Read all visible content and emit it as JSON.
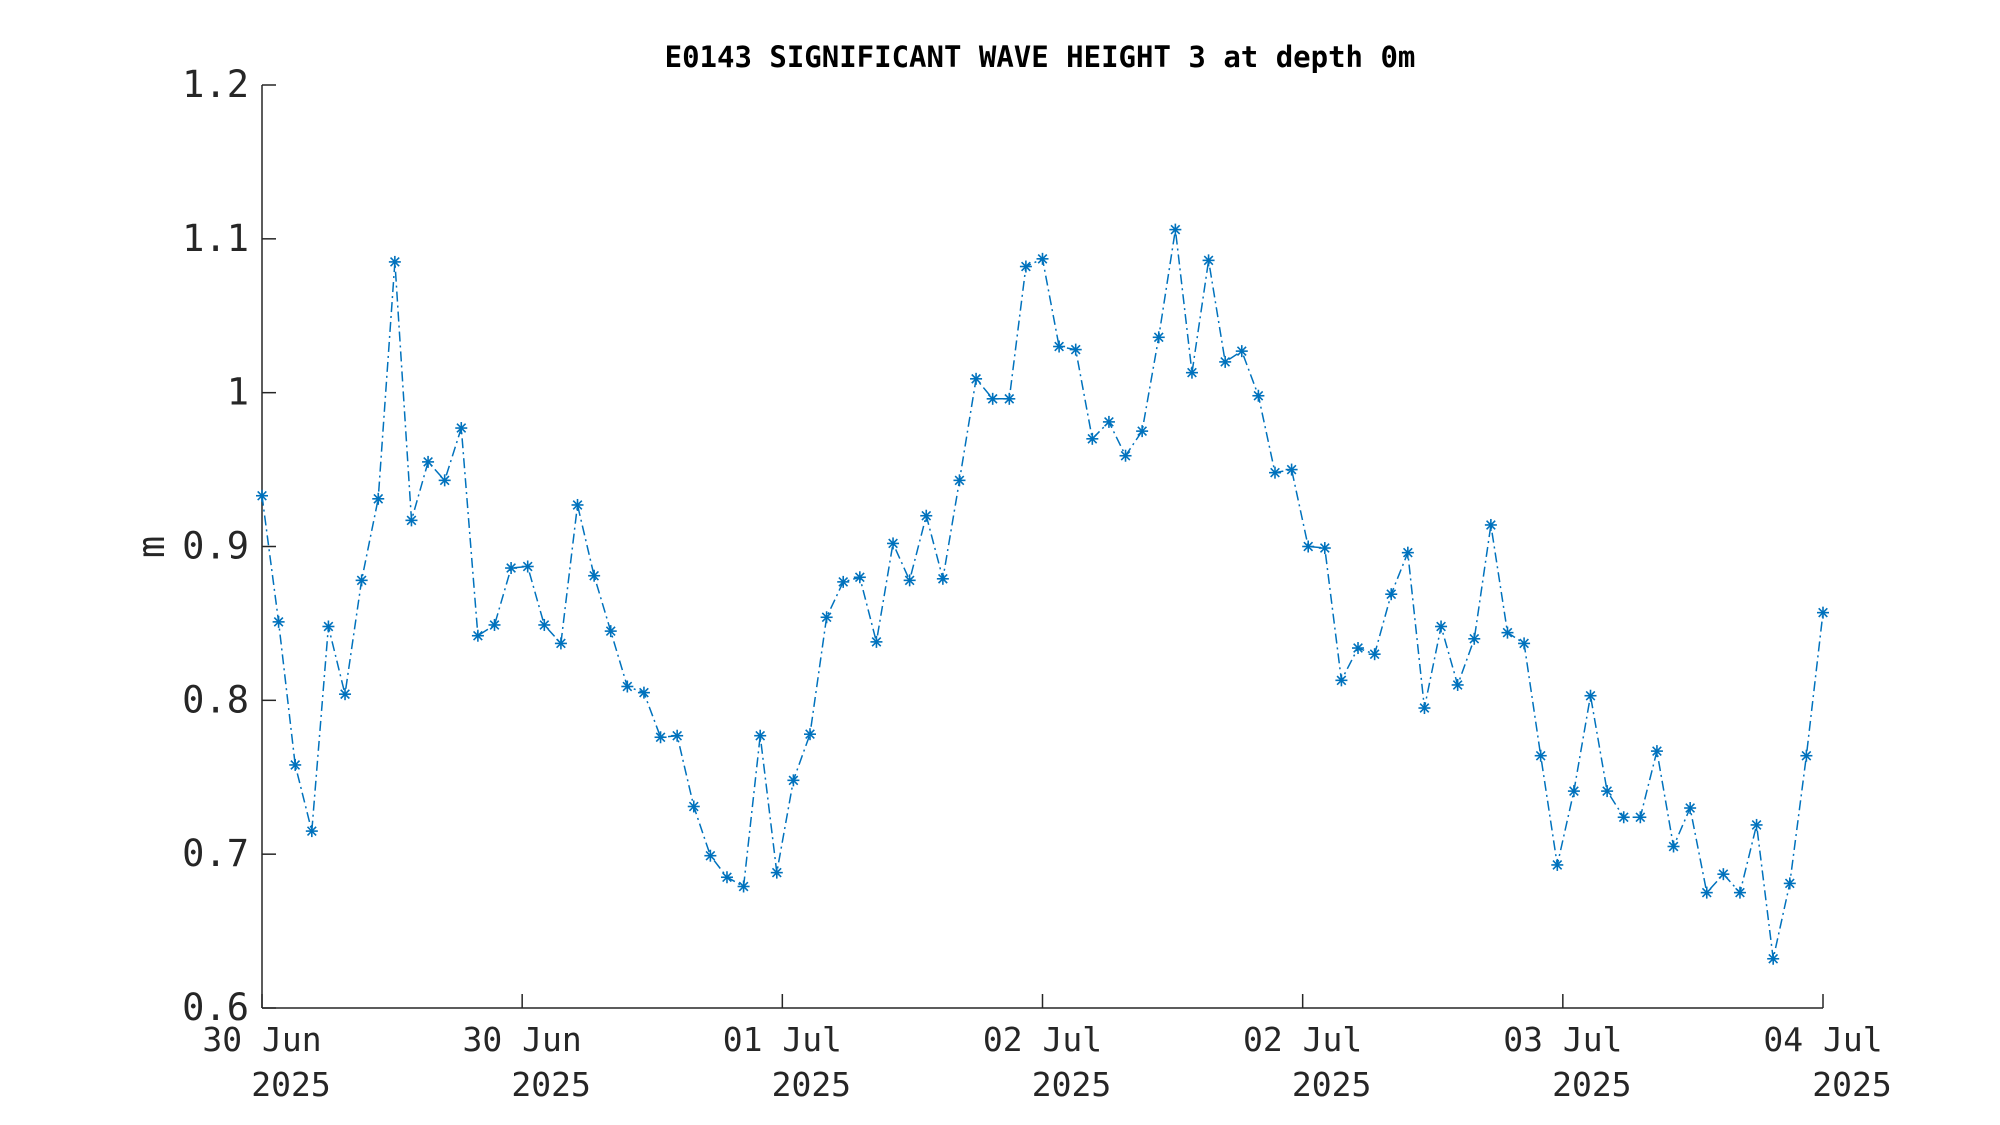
{
  "chart_data": {
    "type": "line",
    "title": "E0143 SIGNIFICANT WAVE HEIGHT 3 at depth 0m",
    "xlabel": "",
    "ylabel": "m",
    "ylim": [
      0.6,
      1.2
    ],
    "yticks": [
      "0.6",
      "0.7",
      "0.8",
      "0.9",
      "1",
      "1.1",
      "1.2"
    ],
    "xticks": [
      {
        "line1": "30 Jun",
        "line2": "2025"
      },
      {
        "line1": "30 Jun",
        "line2": "2025"
      },
      {
        "line1": "01 Jul",
        "line2": "2025"
      },
      {
        "line1": "02 Jul",
        "line2": "2025"
      },
      {
        "line1": "02 Jul",
        "line2": "2025"
      },
      {
        "line1": "03 Jul",
        "line2": "2025"
      },
      {
        "line1": "04 Jul",
        "line2": "2025"
      }
    ],
    "grid": false,
    "line_style": "dash-dot",
    "marker": "asterisk",
    "color": "#0072bd",
    "series": [
      {
        "values": [
          0.933,
          0.851,
          0.758,
          0.715,
          0.848,
          0.804,
          0.878,
          0.931,
          1.085,
          0.917,
          0.955,
          0.943,
          0.977,
          0.842,
          0.849,
          0.886,
          0.887,
          0.849,
          0.837,
          0.927,
          0.881,
          0.845,
          0.809,
          0.805,
          0.776,
          0.777,
          0.731,
          0.699,
          0.685,
          0.679,
          0.777,
          0.688,
          0.748,
          0.778,
          0.854,
          0.877,
          0.88,
          0.838,
          0.902,
          0.878,
          0.92,
          0.879,
          0.943,
          1.009,
          0.996,
          0.996,
          1.082,
          1.087,
          1.03,
          1.028,
          0.97,
          0.981,
          0.959,
          0.975,
          1.036,
          1.106,
          1.013,
          1.086,
          1.02,
          1.027,
          0.998,
          0.948,
          0.95,
          0.9,
          0.899,
          0.813,
          0.834,
          0.83,
          0.869,
          0.896,
          0.795,
          0.848,
          0.81,
          0.84,
          0.914,
          0.844,
          0.837,
          0.764,
          0.693,
          0.741,
          0.803,
          0.741,
          0.724,
          0.724,
          0.767,
          0.705,
          0.73,
          0.675,
          0.687,
          0.675,
          0.719,
          0.632,
          0.681,
          0.764,
          0.857
        ]
      }
    ]
  }
}
